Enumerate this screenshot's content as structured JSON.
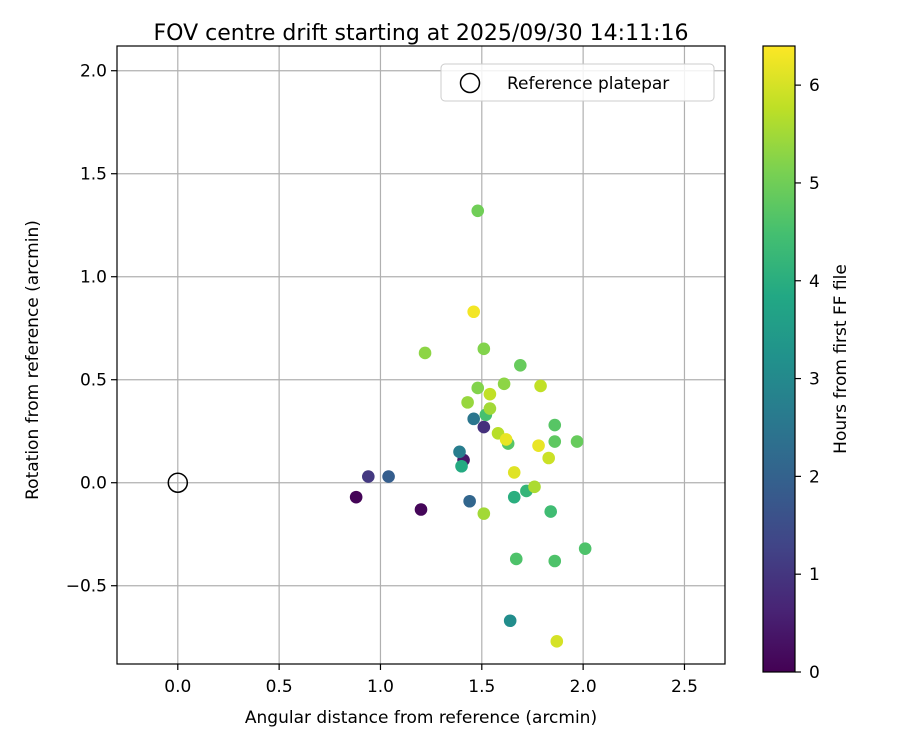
{
  "chart_data": {
    "type": "scatter",
    "title": "FOV centre drift starting at 2025/09/30 14:11:16",
    "xlabel": "Angular distance from reference (arcmin)",
    "ylabel": "Rotation from reference (arcmin)",
    "xlim": [
      -0.3,
      2.7
    ],
    "ylim": [
      -0.88,
      2.12
    ],
    "xticks": [
      0.0,
      0.5,
      1.0,
      1.5,
      2.0,
      2.5
    ],
    "xtick_labels": [
      "0.0",
      "0.5",
      "1.0",
      "1.5",
      "2.0",
      "2.5"
    ],
    "yticks": [
      -0.5,
      0.0,
      0.5,
      1.0,
      1.5,
      2.0
    ],
    "ytick_labels": [
      "−0.5",
      "0.0",
      "0.5",
      "1.0",
      "1.5",
      "2.0"
    ],
    "grid": true,
    "legend": {
      "placement": "top-right",
      "entries": [
        {
          "label": "Reference platepar",
          "marker": "open-circle"
        }
      ]
    },
    "reference_point": {
      "x": 0.0,
      "y": 0.0
    },
    "colorbar": {
      "label": "Hours from first FF file",
      "colormap": "viridis",
      "range": [
        0,
        6.4
      ],
      "ticks": [
        0,
        1,
        2,
        3,
        4,
        5,
        6
      ],
      "tick_labels": [
        "0",
        "1",
        "2",
        "3",
        "4",
        "5",
        "6"
      ]
    },
    "points": [
      {
        "x": 0.88,
        "y": -0.07,
        "hours": 0.05
      },
      {
        "x": 1.2,
        "y": -0.13,
        "hours": 0.1
      },
      {
        "x": 1.41,
        "y": 0.11,
        "hours": 0.4
      },
      {
        "x": 0.94,
        "y": 0.03,
        "hours": 1.05
      },
      {
        "x": 1.51,
        "y": 0.27,
        "hours": 0.9
      },
      {
        "x": 1.04,
        "y": 0.03,
        "hours": 1.9
      },
      {
        "x": 1.44,
        "y": -0.09,
        "hours": 2.1
      },
      {
        "x": 1.46,
        "y": 0.31,
        "hours": 2.5
      },
      {
        "x": 1.39,
        "y": 0.15,
        "hours": 2.7
      },
      {
        "x": 1.64,
        "y": -0.67,
        "hours": 3.1
      },
      {
        "x": 1.4,
        "y": 0.08,
        "hours": 3.9
      },
      {
        "x": 1.66,
        "y": -0.07,
        "hours": 4.0
      },
      {
        "x": 1.72,
        "y": -0.04,
        "hours": 4.2
      },
      {
        "x": 1.84,
        "y": -0.14,
        "hours": 4.4
      },
      {
        "x": 1.52,
        "y": 0.33,
        "hours": 4.5
      },
      {
        "x": 1.67,
        "y": -0.37,
        "hours": 4.6
      },
      {
        "x": 1.86,
        "y": -0.38,
        "hours": 4.6
      },
      {
        "x": 2.01,
        "y": -0.32,
        "hours": 4.6
      },
      {
        "x": 1.63,
        "y": 0.19,
        "hours": 4.7
      },
      {
        "x": 1.86,
        "y": 0.28,
        "hours": 4.7
      },
      {
        "x": 1.86,
        "y": 0.2,
        "hours": 4.8
      },
      {
        "x": 1.97,
        "y": 0.2,
        "hours": 4.9
      },
      {
        "x": 1.69,
        "y": 0.57,
        "hours": 4.9
      },
      {
        "x": 1.48,
        "y": 1.32,
        "hours": 5.0
      },
      {
        "x": 1.51,
        "y": 0.65,
        "hours": 5.2
      },
      {
        "x": 1.48,
        "y": 0.46,
        "hours": 5.2
      },
      {
        "x": 1.61,
        "y": 0.48,
        "hours": 5.3
      },
      {
        "x": 1.22,
        "y": 0.63,
        "hours": 5.3
      },
      {
        "x": 1.43,
        "y": 0.39,
        "hours": 5.4
      },
      {
        "x": 1.54,
        "y": 0.36,
        "hours": 5.5
      },
      {
        "x": 1.51,
        "y": -0.15,
        "hours": 5.5
      },
      {
        "x": 1.76,
        "y": -0.02,
        "hours": 5.6
      },
      {
        "x": 1.58,
        "y": 0.24,
        "hours": 5.7
      },
      {
        "x": 1.54,
        "y": 0.43,
        "hours": 5.8
      },
      {
        "x": 1.79,
        "y": 0.47,
        "hours": 5.8
      },
      {
        "x": 1.83,
        "y": 0.12,
        "hours": 5.9
      },
      {
        "x": 1.87,
        "y": -0.77,
        "hours": 6.0
      },
      {
        "x": 1.66,
        "y": 0.05,
        "hours": 6.1
      },
      {
        "x": 1.62,
        "y": 0.21,
        "hours": 6.2
      },
      {
        "x": 1.78,
        "y": 0.18,
        "hours": 6.2
      },
      {
        "x": 1.46,
        "y": 0.83,
        "hours": 6.3
      }
    ]
  }
}
